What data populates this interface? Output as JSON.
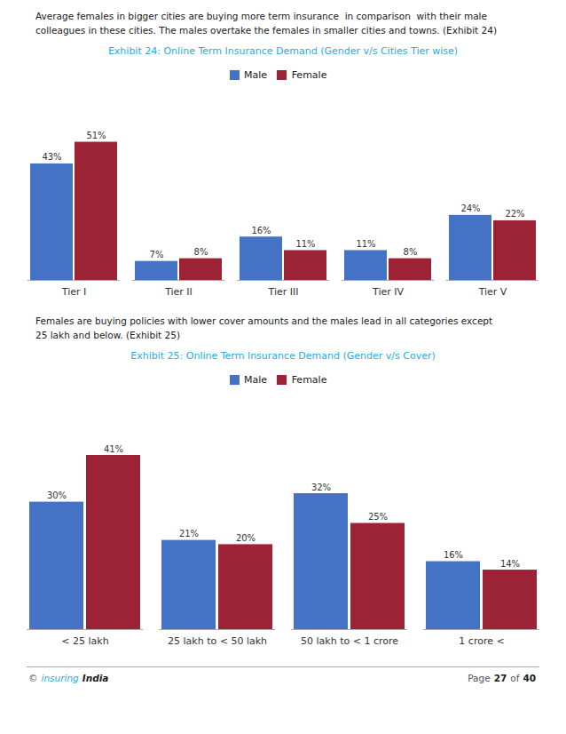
{
  "chart_data": [
    {
      "type": "bar",
      "title": "Exhibit 24: Online Term Insurance Demand (Gender v/s Cities Tier wise)",
      "subtitle": "Average females in bigger cities are buying more term insurance  in comparison  with their male\ncolleagues in these cities. The males overtake the females in smaller cities and towns. (Exhibit 24)",
      "categories": [
        "Tier I",
        "Tier II",
        "Tier III",
        "Tier IV",
        "Tier V"
      ],
      "series": [
        {
          "name": "Male",
          "color": "#4472c4",
          "values": [
            43,
            7,
            16,
            11,
            24
          ],
          "value_labels": [
            "43%",
            "7%",
            "16%",
            "11%",
            "24%"
          ]
        },
        {
          "name": "Female",
          "color": "#9b2335",
          "values": [
            51,
            8,
            11,
            8,
            22
          ],
          "value_labels": [
            "51%",
            "8%",
            "11%",
            "8%",
            "22%"
          ]
        }
      ],
      "ylim": [
        0,
        62
      ],
      "data_labels": true,
      "tick_labels": "x",
      "grid": false,
      "legend": "top"
    },
    {
      "type": "bar",
      "title": "Exhibit 25: Online Term Insurance Demand (Gender v/s Cover)",
      "subtitle": "Females are buying policies with lower cover amounts and the males lead in all categories except\n25 lakh and below. (Exhibit 25)",
      "categories": [
        "< 25 lakh",
        "25 lakh to < 50 lakh",
        "50 lakh to < 1 crore",
        "1 crore <"
      ],
      "series": [
        {
          "name": "Male",
          "color": "#4472c4",
          "values": [
            30,
            21,
            32,
            16
          ],
          "value_labels": [
            "30%",
            "21%",
            "32%",
            "16%"
          ]
        },
        {
          "name": "Female",
          "color": "#9b2335",
          "values": [
            41,
            20,
            25,
            14
          ],
          "value_labels": [
            "41%",
            "20%",
            "25%",
            "14%"
          ]
        }
      ],
      "ylim": [
        0,
        50
      ],
      "data_labels": true,
      "tick_labels": "x",
      "grid": false,
      "legend": "top"
    }
  ],
  "footer": {
    "left": [
      "©",
      "insuring",
      "India"
    ],
    "right": [
      "Page",
      "27",
      "of",
      "40"
    ]
  }
}
